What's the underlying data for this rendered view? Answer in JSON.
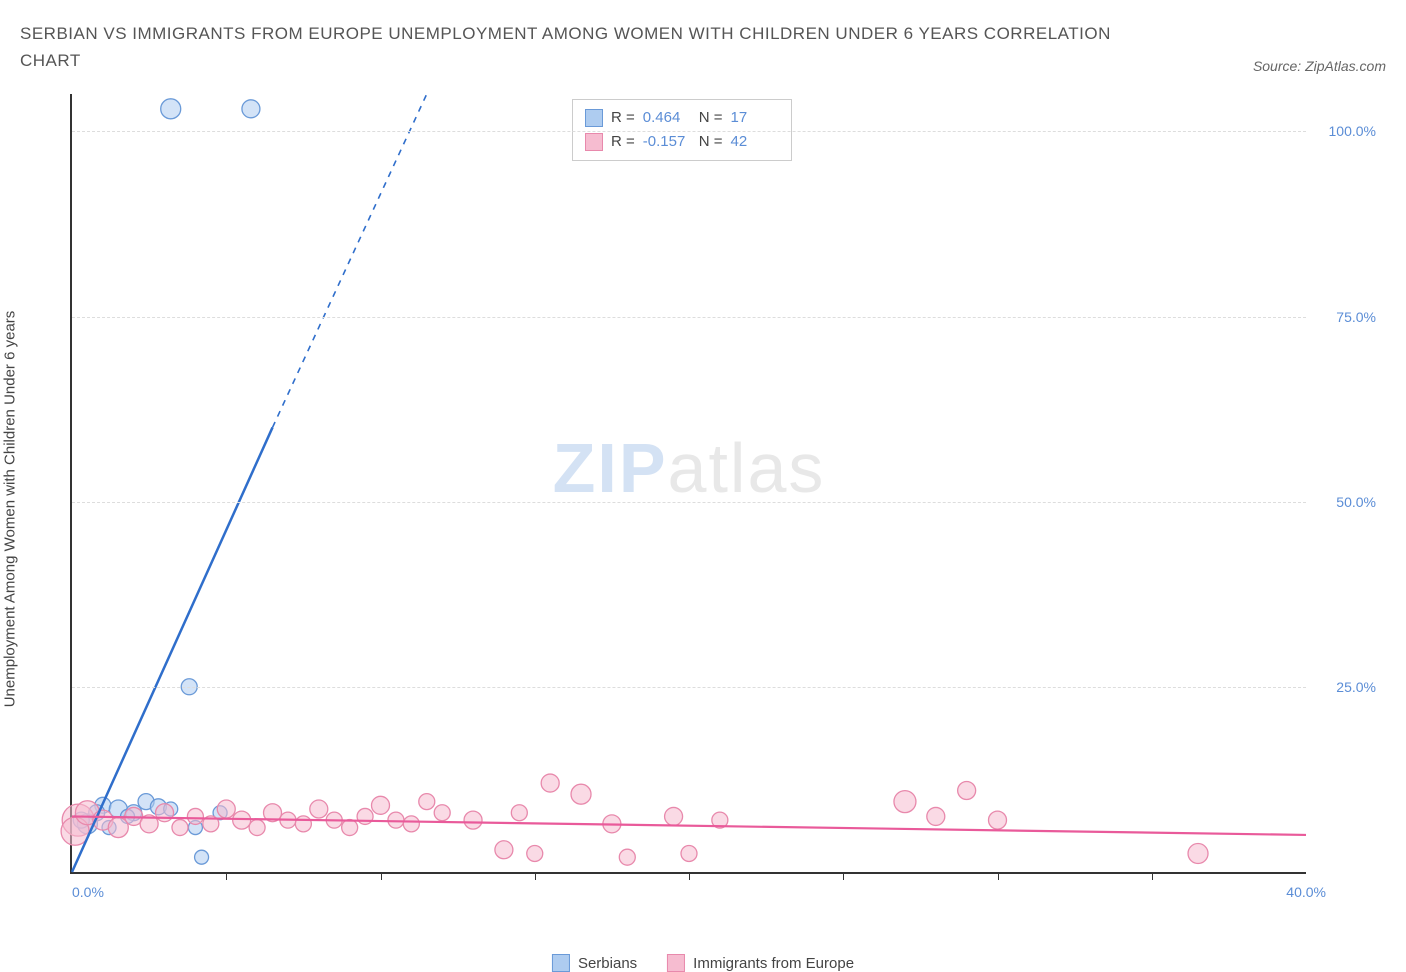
{
  "title": "SERBIAN VS IMMIGRANTS FROM EUROPE UNEMPLOYMENT AMONG WOMEN WITH CHILDREN UNDER 6 YEARS CORRELATION CHART",
  "source_label": "Source: ZipAtlas.com",
  "y_axis_label": "Unemployment Among Women with Children Under 6 years",
  "watermark_zip": "ZIP",
  "watermark_atlas": "atlas",
  "chart": {
    "type": "scatter",
    "x_min": 0.0,
    "x_max": 40.0,
    "y_min": 0.0,
    "y_max": 105.0,
    "x_ticks": [
      0.0,
      40.0
    ],
    "x_minor_ticks": [
      5,
      10,
      15,
      20,
      25,
      30,
      35
    ],
    "y_ticks": [
      25.0,
      50.0,
      75.0,
      100.0
    ],
    "x_tick_format": "percent1",
    "y_tick_format": "percent1",
    "background_color": "#ffffff",
    "grid_color": "#dddddd",
    "axis_color": "#333333",
    "tick_label_color": "#5b8dd6",
    "series": [
      {
        "id": "serbians",
        "label": "Serbians",
        "fill": "#aeccf0",
        "fill_opacity": 0.55,
        "stroke": "#6a9ad8",
        "marker_stroke_width": 1.3,
        "trend_color": "#2f6ecb",
        "trend_width": 2.5,
        "trend_solid": {
          "x1": 0.0,
          "y1": 0.0,
          "x2": 6.5,
          "y2": 60.0
        },
        "trend_dashed": {
          "x1": 6.5,
          "y1": 60.0,
          "x2": 11.5,
          "y2": 105.0
        },
        "stats": {
          "R": "0.464",
          "N": "17"
        },
        "points": [
          {
            "x": 3.2,
            "y": 103.0,
            "r": 10
          },
          {
            "x": 5.8,
            "y": 103.0,
            "r": 9
          },
          {
            "x": 3.8,
            "y": 25.0,
            "r": 8
          },
          {
            "x": 0.5,
            "y": 6.5,
            "r": 10
          },
          {
            "x": 1.0,
            "y": 9.0,
            "r": 8
          },
          {
            "x": 1.5,
            "y": 8.5,
            "r": 9
          },
          {
            "x": 2.0,
            "y": 8.0,
            "r": 8
          },
          {
            "x": 2.4,
            "y": 9.5,
            "r": 8
          },
          {
            "x": 2.8,
            "y": 8.8,
            "r": 8
          },
          {
            "x": 1.2,
            "y": 6.0,
            "r": 7
          },
          {
            "x": 0.8,
            "y": 8.0,
            "r": 8
          },
          {
            "x": 4.0,
            "y": 6.0,
            "r": 7
          },
          {
            "x": 4.2,
            "y": 2.0,
            "r": 7
          },
          {
            "x": 1.8,
            "y": 7.5,
            "r": 7
          },
          {
            "x": 0.3,
            "y": 7.0,
            "r": 8
          },
          {
            "x": 3.2,
            "y": 8.5,
            "r": 7
          },
          {
            "x": 4.8,
            "y": 8.0,
            "r": 7
          }
        ]
      },
      {
        "id": "immigrants",
        "label": "Immigrants from Europe",
        "fill": "#f6bcd0",
        "fill_opacity": 0.55,
        "stroke": "#e889ac",
        "marker_stroke_width": 1.3,
        "trend_color": "#e95a9a",
        "trend_width": 2.2,
        "trend_solid": {
          "x1": 0.0,
          "y1": 7.5,
          "x2": 40.0,
          "y2": 5.0
        },
        "trend_dashed": null,
        "stats": {
          "R": "-0.157",
          "N": "42"
        },
        "points": [
          {
            "x": 0.2,
            "y": 7.0,
            "r": 16
          },
          {
            "x": 0.1,
            "y": 5.5,
            "r": 14
          },
          {
            "x": 0.5,
            "y": 8.0,
            "r": 12
          },
          {
            "x": 1.0,
            "y": 7.0,
            "r": 10
          },
          {
            "x": 1.5,
            "y": 6.0,
            "r": 10
          },
          {
            "x": 2.0,
            "y": 7.5,
            "r": 9
          },
          {
            "x": 2.5,
            "y": 6.5,
            "r": 9
          },
          {
            "x": 3.0,
            "y": 8.0,
            "r": 9
          },
          {
            "x": 3.5,
            "y": 6.0,
            "r": 8
          },
          {
            "x": 4.0,
            "y": 7.5,
            "r": 8
          },
          {
            "x": 4.5,
            "y": 6.5,
            "r": 8
          },
          {
            "x": 5.0,
            "y": 8.5,
            "r": 9
          },
          {
            "x": 5.5,
            "y": 7.0,
            "r": 9
          },
          {
            "x": 6.0,
            "y": 6.0,
            "r": 8
          },
          {
            "x": 6.5,
            "y": 8.0,
            "r": 9
          },
          {
            "x": 7.0,
            "y": 7.0,
            "r": 8
          },
          {
            "x": 7.5,
            "y": 6.5,
            "r": 8
          },
          {
            "x": 8.0,
            "y": 8.5,
            "r": 9
          },
          {
            "x": 8.5,
            "y": 7.0,
            "r": 8
          },
          {
            "x": 9.0,
            "y": 6.0,
            "r": 8
          },
          {
            "x": 9.5,
            "y": 7.5,
            "r": 8
          },
          {
            "x": 10.0,
            "y": 9.0,
            "r": 9
          },
          {
            "x": 10.5,
            "y": 7.0,
            "r": 8
          },
          {
            "x": 11.0,
            "y": 6.5,
            "r": 8
          },
          {
            "x": 12.0,
            "y": 8.0,
            "r": 8
          },
          {
            "x": 13.0,
            "y": 7.0,
            "r": 9
          },
          {
            "x": 14.0,
            "y": 3.0,
            "r": 9
          },
          {
            "x": 14.5,
            "y": 8.0,
            "r": 8
          },
          {
            "x": 15.0,
            "y": 2.5,
            "r": 8
          },
          {
            "x": 15.5,
            "y": 12.0,
            "r": 9
          },
          {
            "x": 16.5,
            "y": 10.5,
            "r": 10
          },
          {
            "x": 17.5,
            "y": 6.5,
            "r": 9
          },
          {
            "x": 18.0,
            "y": 2.0,
            "r": 8
          },
          {
            "x": 19.5,
            "y": 7.5,
            "r": 9
          },
          {
            "x": 20.0,
            "y": 2.5,
            "r": 8
          },
          {
            "x": 21.0,
            "y": 7.0,
            "r": 8
          },
          {
            "x": 27.0,
            "y": 9.5,
            "r": 11
          },
          {
            "x": 28.0,
            "y": 7.5,
            "r": 9
          },
          {
            "x": 29.0,
            "y": 11.0,
            "r": 9
          },
          {
            "x": 30.0,
            "y": 7.0,
            "r": 9
          },
          {
            "x": 36.5,
            "y": 2.5,
            "r": 10
          },
          {
            "x": 11.5,
            "y": 9.5,
            "r": 8
          }
        ]
      }
    ]
  },
  "stats_box": {
    "rows": [
      {
        "swatch_fill": "#aeccf0",
        "swatch_stroke": "#6a9ad8",
        "R_label": "R =",
        "R_val": "0.464",
        "N_label": "N =",
        "N_val": "17"
      },
      {
        "swatch_fill": "#f6bcd0",
        "swatch_stroke": "#e889ac",
        "R_label": "R =",
        "R_val": "-0.157",
        "N_label": "N =",
        "N_val": "42"
      }
    ]
  },
  "legend": {
    "items": [
      {
        "swatch_fill": "#aeccf0",
        "swatch_stroke": "#6a9ad8",
        "label": "Serbians"
      },
      {
        "swatch_fill": "#f6bcd0",
        "swatch_stroke": "#e889ac",
        "label": "Immigrants from Europe"
      }
    ]
  }
}
